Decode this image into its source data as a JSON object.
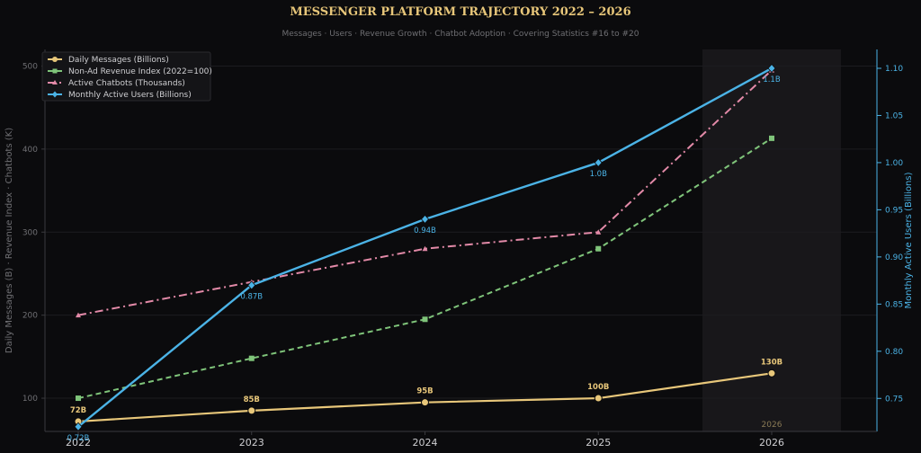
{
  "chart_data": {
    "type": "line",
    "title": "MESSENGER PLATFORM TRAJECTORY  2022 – 2026",
    "subtitle": "Messages · Users · Revenue Growth · Chatbot Adoption  ·  Covering Statistics #16 to #20",
    "x": [
      "2022",
      "2023",
      "2024",
      "2025",
      "2026"
    ],
    "ylabel_left": "Daily Messages (B) · Revenue Index · Chatbots (K)",
    "ylabel_right": "Monthly Active Users (Billions)",
    "ylim_left": [
      60,
      520
    ],
    "ylim_right": [
      0.715,
      1.12
    ],
    "yticks_left": [
      "100",
      "200",
      "300",
      "400",
      "500"
    ],
    "yticks_right": [
      "0.75",
      "0.80",
      "0.85",
      "0.90",
      "0.95",
      "1.00",
      "1.05",
      "1.10"
    ],
    "highlight_label": "2026",
    "grid": true,
    "legend": "top-left",
    "series": [
      {
        "name": "Daily Messages (Billions)",
        "axis": "left",
        "color": "#e8c77a",
        "values": [
          72,
          85,
          95,
          100,
          130
        ],
        "labels": [
          "72B",
          "85B",
          "95B",
          "100B",
          "130B"
        ]
      },
      {
        "name": "Non-Ad Revenue Index (2022=100)",
        "axis": "left",
        "color": "#7fc47a",
        "values": [
          100,
          148,
          195,
          280,
          413
        ]
      },
      {
        "name": "Active Chatbots (Thousands)",
        "axis": "left",
        "color": "#e38aa8",
        "values": [
          200,
          240,
          280,
          300,
          495
        ]
      },
      {
        "name": "Monthly Active Users (Billions)",
        "axis": "right",
        "color": "#4bb3e6",
        "values": [
          0.72,
          0.87,
          0.94,
          1.0,
          1.1
        ],
        "labels": [
          "0.72B",
          "0.87B",
          "0.94B",
          "1.0B",
          "1.1B"
        ]
      }
    ]
  }
}
